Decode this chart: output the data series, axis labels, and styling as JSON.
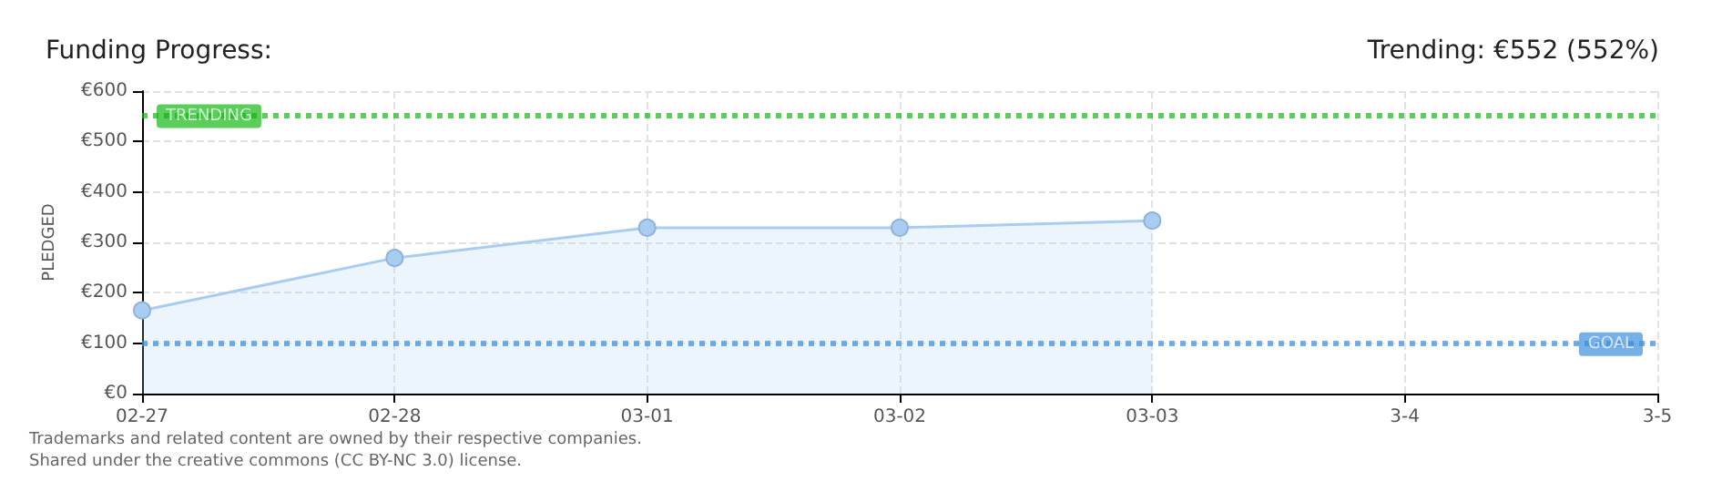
{
  "chart_data": {
    "type": "area",
    "title": "Funding Progress:",
    "subtitle": "Trending: €552 (552%)",
    "ylabel": "PLEDGED",
    "categories": [
      "02-27",
      "02-28",
      "03-01",
      "03-02",
      "03-03",
      "3-4",
      "3-5"
    ],
    "series": [
      {
        "color": "#a9cdf0",
        "values": [
          165,
          269,
          329,
          329,
          343,
          null,
          null
        ]
      }
    ],
    "ylim": [
      0,
      600
    ],
    "yticks": [
      {
        "value": 0,
        "label": "€0"
      },
      {
        "value": 100,
        "label": "€100"
      },
      {
        "value": 200,
        "label": "€200"
      },
      {
        "value": 300,
        "label": "€300"
      },
      {
        "value": 400,
        "label": "€400"
      },
      {
        "value": 500,
        "label": "€500"
      },
      {
        "value": 600,
        "label": "€600"
      }
    ],
    "grid": true,
    "marker": "circle",
    "ref_lines": [
      {
        "axis": "y",
        "value": 552,
        "label": "TRENDING",
        "color": "#14b814",
        "line_style": "dotted"
      },
      {
        "axis": "y",
        "value": 100,
        "label": "GOAL",
        "color": "#3d8edb",
        "line_style": "dotted"
      }
    ],
    "annotations": [
      "Trademarks and related content are owned by their respective companies.",
      "Shared under the creative commons (CC BY-NC 3.0) license."
    ]
  }
}
